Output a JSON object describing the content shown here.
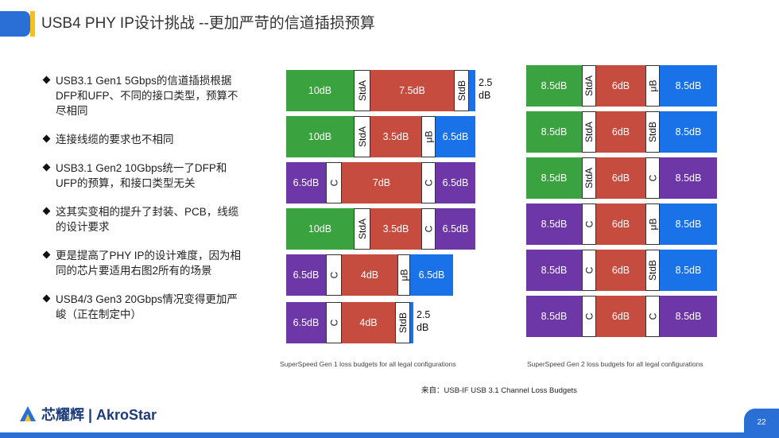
{
  "title": "USB4 PHY IP设计挑战 --更加严苛的信道插损预算",
  "bullets": [
    "USB3.1 Gen1 5Gbps的信道插损根据DFP和UFP、不同的接口类型，预算不尽相同",
    "连接线缆的要求也不相同",
    "USB3.1 Gen2 10Gbps统一了DFP和UFP的预算，和接口类型无关",
    "这其实变相的提升了封装、PCB，线缆的设计要求",
    "更是提高了PHY IP的设计难度，因为相同的芯片要适用右图2所有的场景",
    "USB4/3 Gen3 20Gbps情况变得更加严峻（正在制定中）"
  ],
  "colors": {
    "green": "#3aa23e",
    "red": "#c54c3f",
    "blue": "#1a72e8",
    "purple": "#6d37a8"
  },
  "diagram_gen1": {
    "caption": "SuperSpeed Gen 1 loss budgets for all legal configurations",
    "rows": [
      {
        "left": {
          "label": "10dB",
          "color": "green"
        },
        "lc": "StdA",
        "mid": "7.5dB",
        "rc": "StdB",
        "right": {
          "label": "",
          "color": "blue"
        },
        "extra": "2.5 dB"
      },
      {
        "left": {
          "label": "10dB",
          "color": "green"
        },
        "lc": "StdA",
        "mid": "3.5dB",
        "rc": "μB",
        "right": {
          "label": "6.5dB",
          "color": "blue"
        },
        "extra": ""
      },
      {
        "left": {
          "label": "6.5dB",
          "color": "purple"
        },
        "lc": "C",
        "mid": "7dB",
        "rc": "C",
        "right": {
          "label": "6.5dB",
          "color": "purple"
        },
        "extra": ""
      },
      {
        "left": {
          "label": "10dB",
          "color": "green"
        },
        "lc": "StdA",
        "mid": "3.5dB",
        "rc": "C",
        "right": {
          "label": "6.5dB",
          "color": "purple"
        },
        "extra": ""
      },
      {
        "left": {
          "label": "6.5dB",
          "color": "purple"
        },
        "lc": "C",
        "mid": "4dB",
        "rc": "μB",
        "right": {
          "label": "6.5dB",
          "color": "blue"
        },
        "extra": ""
      },
      {
        "left": {
          "label": "6.5dB",
          "color": "purple"
        },
        "lc": "C",
        "mid": "4dB",
        "rc": "StdB",
        "right": {
          "label": "",
          "color": "blue"
        },
        "extra": "2.5 dB"
      }
    ]
  },
  "diagram_gen2": {
    "caption": "SuperSpeed Gen 2 loss budgets for all legal configurations",
    "rows": [
      {
        "left": {
          "label": "8.5dB",
          "color": "green"
        },
        "lc": "StdA",
        "mid": "6dB",
        "rc": "μB",
        "right": {
          "label": "8.5dB",
          "color": "blue"
        }
      },
      {
        "left": {
          "label": "8.5dB",
          "color": "green"
        },
        "lc": "StdA",
        "mid": "6dB",
        "rc": "StdB",
        "right": {
          "label": "8.5dB",
          "color": "blue"
        }
      },
      {
        "left": {
          "label": "8.5dB",
          "color": "green"
        },
        "lc": "StdA",
        "mid": "6dB",
        "rc": "C",
        "right": {
          "label": "8.5dB",
          "color": "purple"
        }
      },
      {
        "left": {
          "label": "8.5dB",
          "color": "purple"
        },
        "lc": "C",
        "mid": "6dB",
        "rc": "μB",
        "right": {
          "label": "8.5dB",
          "color": "blue"
        }
      },
      {
        "left": {
          "label": "8.5dB",
          "color": "purple"
        },
        "lc": "C",
        "mid": "6dB",
        "rc": "StdB",
        "right": {
          "label": "8.5dB",
          "color": "blue"
        }
      },
      {
        "left": {
          "label": "8.5dB",
          "color": "purple"
        },
        "lc": "C",
        "mid": "6dB",
        "rc": "C",
        "right": {
          "label": "8.5dB",
          "color": "purple"
        }
      }
    ]
  },
  "source": "来自：USB-IF USB 3.1 Channel Loss Budgets",
  "logo_text": "芯耀辉 | AkroStar",
  "logo_icon": "akrostar-logo-icon",
  "page_number": "22"
}
